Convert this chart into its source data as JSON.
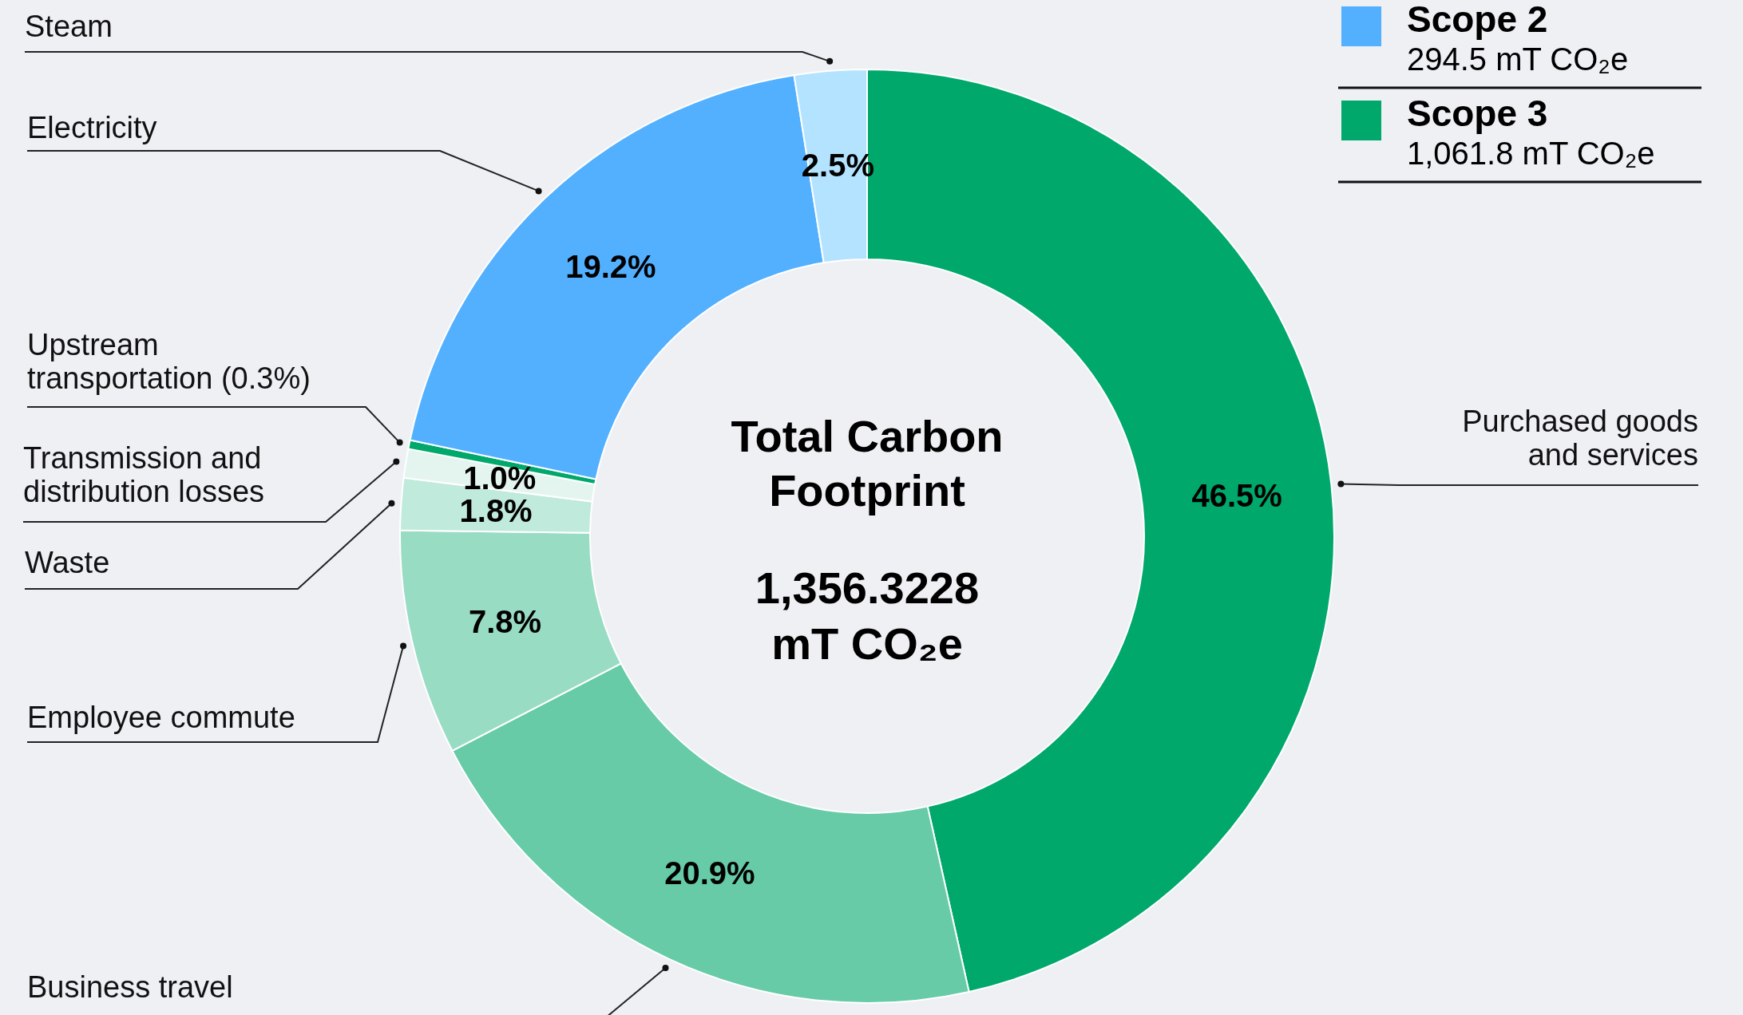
{
  "chart_data": {
    "type": "donut",
    "title": "Total Carbon Footprint",
    "subtitle": "1,356.3228 mT CO₂e",
    "categories": [
      "Purchased goods and services",
      "Business travel",
      "Employee commute",
      "Waste",
      "Transmission and distribution losses",
      "Upstream transportation (0.3%)",
      "Electricity",
      "Steam"
    ],
    "values": [
      46.5,
      20.9,
      7.8,
      1.8,
      1.0,
      0.3,
      19.2,
      2.5
    ],
    "colors": [
      "#00a86b",
      "#66cba6",
      "#99dcc4",
      "#c0eadb",
      "#e3f5ee",
      "#00a86b",
      "#52b0ff",
      "#b3e3ff"
    ],
    "value_labels": [
      "46.5%",
      "20.9%",
      "7.8%",
      "1.8%",
      "1.0%",
      null,
      "19.2%",
      "2.5%"
    ],
    "annotations": [
      "Scope 2",
      "294.5 mT CO₂e",
      "Scope 3",
      "1,061.8 mT CO₂e"
    ]
  }
}
